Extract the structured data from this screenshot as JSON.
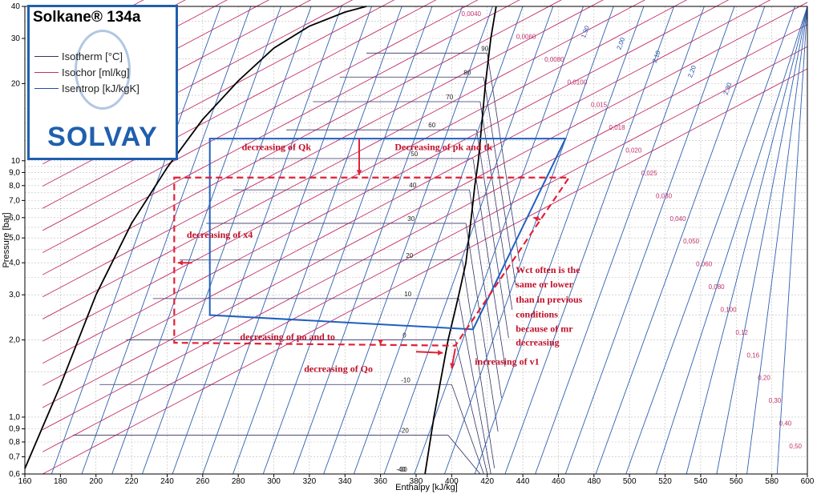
{
  "chart_data": {
    "type": "line",
    "title": "Solkane® 134a",
    "brand": "SOLVAY",
    "xlabel": "Enthalpy [kJ/kg]",
    "ylabel": "Pressure [bar]",
    "xlim": [
      160,
      600
    ],
    "ylim": [
      0.6,
      40
    ],
    "yscale": "log",
    "grid": true,
    "x_ticks": [
      160,
      180,
      200,
      220,
      240,
      260,
      280,
      300,
      320,
      340,
      360,
      380,
      400,
      420,
      440,
      460,
      480,
      500,
      520,
      540,
      560,
      580,
      600
    ],
    "y_ticks": [
      {
        "v": 0.6,
        "label": "0,6"
      },
      {
        "v": 0.7,
        "label": "0,7"
      },
      {
        "v": 0.8,
        "label": "0,8"
      },
      {
        "v": 0.9,
        "label": "0,9"
      },
      {
        "v": 1.0,
        "label": "1,0"
      },
      {
        "v": 2.0,
        "label": "2,0"
      },
      {
        "v": 3.0,
        "label": "3,0"
      },
      {
        "v": 4.0,
        "label": "4,0"
      },
      {
        "v": 5.0,
        "label": "5,0"
      },
      {
        "v": 6.0,
        "label": "6,0"
      },
      {
        "v": 7.0,
        "label": "7,0"
      },
      {
        "v": 8.0,
        "label": "8,0"
      },
      {
        "v": 9.0,
        "label": "9,0"
      },
      {
        "v": 10,
        "label": "10"
      },
      {
        "v": 20,
        "label": "20"
      },
      {
        "v": 30,
        "label": "30"
      },
      {
        "v": 40,
        "label": "40"
      }
    ],
    "legend": [
      {
        "label": "Isotherm [°C]",
        "color": "#333366"
      },
      {
        "label": "Isochor [ml/kg]",
        "color": "#c0306a"
      },
      {
        "label": "Isentrop [kJ/kgK]",
        "color": "#1f4fae"
      }
    ],
    "legend_position": "top-left",
    "saturation_liquid": [
      [
        160,
        0.63
      ],
      [
        180,
        1.33
      ],
      [
        200,
        3.0
      ],
      [
        220,
        5.7
      ],
      [
        240,
        9.4
      ],
      [
        260,
        14.5
      ],
      [
        280,
        20.5
      ],
      [
        300,
        27.5
      ],
      [
        320,
        33.5
      ],
      [
        340,
        38.0
      ],
      [
        352,
        40
      ]
    ],
    "saturation_vapor": [
      [
        385,
        0.6
      ],
      [
        390,
        1.0
      ],
      [
        398,
        2.0
      ],
      [
        404,
        3.0
      ],
      [
        408,
        4.0
      ],
      [
        411,
        6.0
      ],
      [
        413,
        8.0
      ],
      [
        415,
        10
      ],
      [
        419,
        20
      ],
      [
        422,
        30
      ],
      [
        425,
        40
      ]
    ],
    "cycle_original": [
      [
        264,
        12.2
      ],
      [
        464,
        12.2
      ],
      [
        412,
        2.2
      ],
      [
        264,
        2.5
      ]
    ],
    "cycle_modified": [
      [
        244,
        8.6
      ],
      [
        466,
        8.6
      ],
      [
        402,
        1.9
      ],
      [
        244,
        1.95
      ]
    ],
    "isotherm_labels": [
      "90",
      "80",
      "70",
      "60",
      "50",
      "40",
      "30",
      "20",
      "10",
      "0",
      "-10",
      "-20",
      "-30",
      "-40"
    ],
    "isochor_labels": [
      "0,0040",
      "0,0060",
      "0,0080",
      "0,0100",
      "0,015",
      "0,018",
      "0,020",
      "0,025",
      "0,030",
      "0,040",
      "0,050",
      "0,060",
      "0,080",
      "0,100",
      "0,12",
      "0,16",
      "0,20",
      "0,30",
      "0,40",
      "0,50"
    ],
    "isentrop_labels": [
      "1,90",
      "2,00",
      "2,10",
      "2,20",
      "2,30"
    ],
    "annotations": [
      {
        "text": "decreasing of Qk",
        "x": 282,
        "y": 11.0
      },
      {
        "text": "Decreasing of pk and tk",
        "x": 368,
        "y": 11.0
      },
      {
        "text": "decreasing of x4",
        "x": 251,
        "y": 5.0
      },
      {
        "text": "Wct often is the",
        "x": 436,
        "y": 3.65
      },
      {
        "text": "same or lower",
        "x": 436,
        "y": 3.2
      },
      {
        "text": "than in previous",
        "x": 436,
        "y": 2.8
      },
      {
        "text": "conditions",
        "x": 436,
        "y": 2.45
      },
      {
        "text": "because of mr",
        "x": 436,
        "y": 2.15
      },
      {
        "text": "decreasing",
        "x": 436,
        "y": 1.9
      },
      {
        "text": "decreasing of po and to",
        "x": 281,
        "y": 2.0
      },
      {
        "text": "decreasing of Qo",
        "x": 317,
        "y": 1.5
      },
      {
        "text": "increasing of v1",
        "x": 413,
        "y": 1.6
      }
    ]
  }
}
